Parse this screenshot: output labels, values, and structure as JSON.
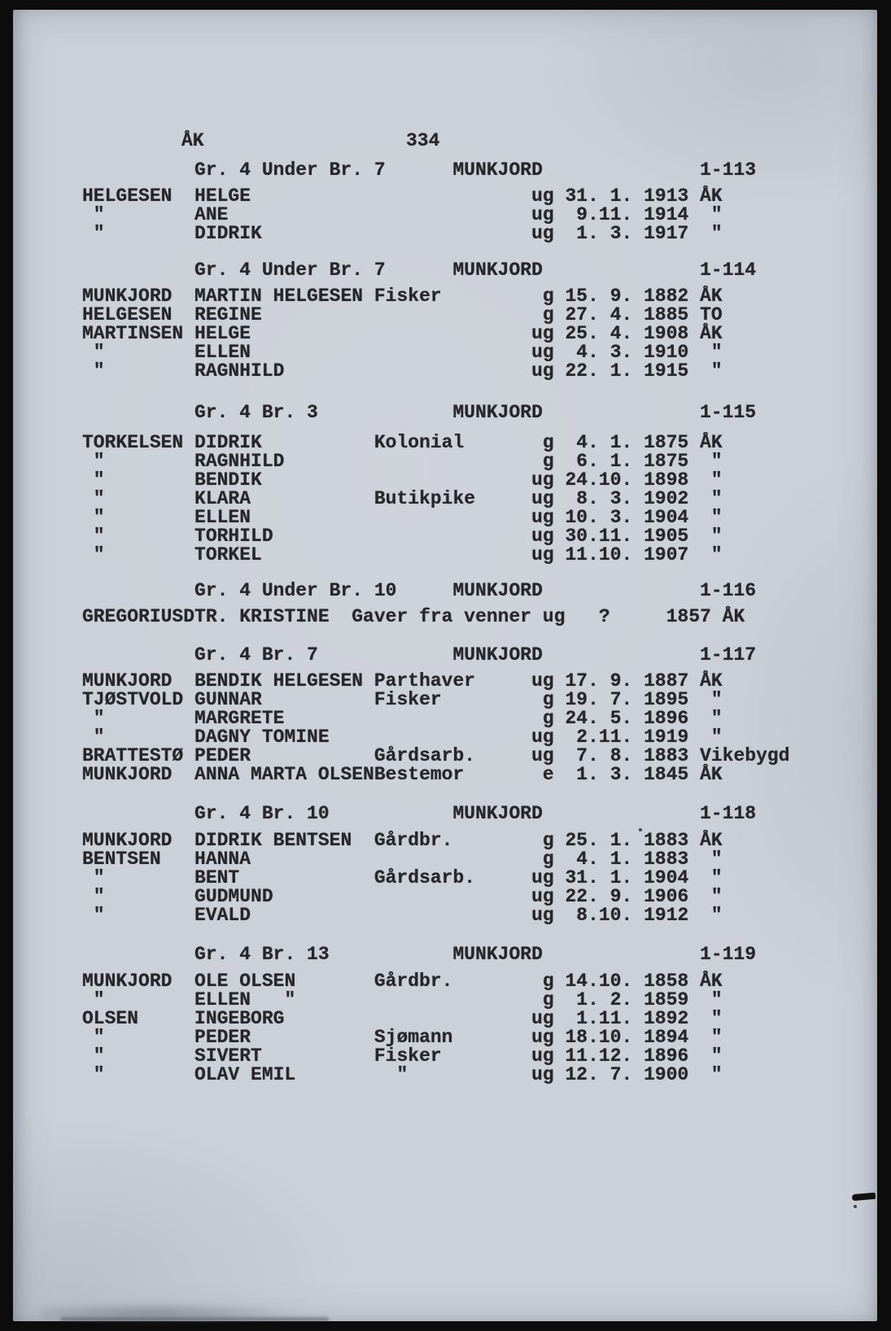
{
  "page": {
    "corner_label": "ÅK",
    "page_number": "334",
    "paper_color": "#ccd0d8",
    "ink_color": "#26262c",
    "frame_color": "#0c0c0c"
  },
  "sections": [
    {
      "group": "Gr. 4 Under Br. 7",
      "farm": "MUNKJORD",
      "id": "1-113",
      "rows": [
        {
          "surname": "HELGESEN",
          "given": "HELGE",
          "occupation": "",
          "status": "ug",
          "date": "31. 1.",
          "year": "1913",
          "place": "ÅK"
        },
        {
          "surname": "\"",
          "given": "ANE",
          "occupation": "",
          "status": "ug",
          "date": " 9.11.",
          "year": "1914",
          "place": "\""
        },
        {
          "surname": "\"",
          "given": "DIDRIK",
          "occupation": "",
          "status": "ug",
          "date": " 1. 3.",
          "year": "1917",
          "place": "\""
        }
      ]
    },
    {
      "group": "Gr. 4 Under Br. 7",
      "farm": "MUNKJORD",
      "id": "1-114",
      "rows": [
        {
          "surname": "MUNKJORD",
          "given": "MARTIN HELGESEN",
          "occupation": "Fisker",
          "status": "g",
          "date": "15. 9.",
          "year": "1882",
          "place": "ÅK"
        },
        {
          "surname": "HELGESEN",
          "given": "REGINE",
          "occupation": "",
          "status": "g",
          "date": "27. 4.",
          "year": "1885",
          "place": "TO"
        },
        {
          "surname": "MARTINSEN",
          "given": "HELGE",
          "occupation": "",
          "status": "ug",
          "date": "25. 4.",
          "year": "1908",
          "place": "ÅK"
        },
        {
          "surname": "\"",
          "given": "ELLEN",
          "occupation": "",
          "status": "ug",
          "date": " 4. 3.",
          "year": "1910",
          "place": "\""
        },
        {
          "surname": "\"",
          "given": "RAGNHILD",
          "occupation": "",
          "status": "ug",
          "date": "22. 1.",
          "year": "1915",
          "place": "\""
        }
      ]
    },
    {
      "group": "Gr. 4 Br. 3",
      "farm": "MUNKJORD",
      "id": "1-115",
      "rows": [
        {
          "surname": "TORKELSEN",
          "given": "DIDRIK",
          "occupation": "Kolonial",
          "status": "g",
          "date": " 4. 1.",
          "year": "1875",
          "place": "ÅK"
        },
        {
          "surname": "\"",
          "given": "RAGNHILD",
          "occupation": "",
          "status": "g",
          "date": " 6. 1.",
          "year": "1875",
          "place": "\""
        },
        {
          "surname": "\"",
          "given": "BENDIK",
          "occupation": "",
          "status": "ug",
          "date": "24.10.",
          "year": "1898",
          "place": "\""
        },
        {
          "surname": "\"",
          "given": "KLARA",
          "occupation": "Butikpike",
          "status": "ug",
          "date": " 8. 3.",
          "year": "1902",
          "place": "\""
        },
        {
          "surname": "\"",
          "given": "ELLEN",
          "occupation": "",
          "status": "ug",
          "date": "10. 3.",
          "year": "1904",
          "place": "\""
        },
        {
          "surname": "\"",
          "given": "TORHILD",
          "occupation": "",
          "status": "ug",
          "date": "30.11.",
          "year": "1905",
          "place": "\""
        },
        {
          "surname": "\"",
          "given": "TORKEL",
          "occupation": "",
          "status": "ug",
          "date": "11.10.",
          "year": "1907",
          "place": "\""
        }
      ]
    },
    {
      "group": "Gr. 4 Under Br. 10",
      "farm": "MUNKJORD",
      "id": "1-116",
      "rows": [
        {
          "special": true,
          "surname": "GREGORIUSDTR.",
          "given": "KRISTINE",
          "occupation": "Gaver fra venner",
          "status": "ug",
          "date": "?",
          "year": "1857",
          "place": "ÅK"
        }
      ]
    },
    {
      "group": "Gr. 4 Br. 7",
      "farm": "MUNKJORD",
      "id": "1-117",
      "rows": [
        {
          "surname": "MUNKJORD",
          "given": "BENDIK HELGESEN",
          "occupation": "Parthaver",
          "status": "ug",
          "date": "17. 9.",
          "year": "1887",
          "place": "ÅK"
        },
        {
          "surname": "TJØSTVOLD",
          "given": "GUNNAR",
          "occupation": "Fisker",
          "status": "g",
          "date": "19. 7.",
          "year": "1895",
          "place": "\""
        },
        {
          "surname": "\"",
          "given": "MARGRETE",
          "occupation": "",
          "status": "g",
          "date": "24. 5.",
          "year": "1896",
          "place": "\""
        },
        {
          "surname": "\"",
          "given": "DAGNY TOMINE",
          "occupation": "",
          "status": "ug",
          "date": " 2.11.",
          "year": "1919",
          "place": "\""
        },
        {
          "surname": "BRATTESTØ",
          "given": "PEDER",
          "occupation": "Gårdsarb.",
          "status": "ug",
          "date": " 7. 8.",
          "year": "1883",
          "place": "Vikebygd"
        },
        {
          "surname": "MUNKJORD",
          "given": "ANNA MARTA OLSEN",
          "occupation": "Bestemor",
          "status": "e",
          "date": " 1. 3.",
          "year": "1845",
          "place": "ÅK"
        }
      ]
    },
    {
      "group": "Gr. 4 Br. 10",
      "farm": "MUNKJORD",
      "id": "1-118",
      "rows": [
        {
          "surname": "MUNKJORD",
          "given": "DIDRIK BENTSEN",
          "occupation": "Gårdbr.",
          "status": "g",
          "date": "25. 1.",
          "year": "1883",
          "place": "ÅK"
        },
        {
          "surname": "BENTSEN",
          "given": "HANNA",
          "occupation": "",
          "status": "g",
          "date": " 4. 1.",
          "year": "1883",
          "place": "\""
        },
        {
          "surname": "\"",
          "given": "BENT",
          "occupation": "Gårdsarb.",
          "status": "ug",
          "date": "31. 1.",
          "year": "1904",
          "place": "\""
        },
        {
          "surname": "\"",
          "given": "GUDMUND",
          "occupation": "",
          "status": "ug",
          "date": "22. 9.",
          "year": "1906",
          "place": "\""
        },
        {
          "surname": "\"",
          "given": "EVALD",
          "occupation": "",
          "status": "ug",
          "date": " 8.10.",
          "year": "1912",
          "place": "\""
        }
      ]
    },
    {
      "group": "Gr. 4 Br. 13",
      "farm": "MUNKJORD",
      "id": "1-119",
      "rows": [
        {
          "surname": "MUNKJORD",
          "given": "OLE OLSEN",
          "occupation": "Gårdbr.",
          "status": "g",
          "date": "14.10.",
          "year": "1858",
          "place": "ÅK"
        },
        {
          "surname": "\"",
          "given": "ELLEN",
          "given_ditto": true,
          "occupation": "",
          "status": "g",
          "date": " 1. 2.",
          "year": "1859",
          "place": "\""
        },
        {
          "surname": "OLSEN",
          "given": "INGEBORG",
          "occupation": "",
          "status": "ug",
          "date": " 1.11.",
          "year": "1892",
          "place": "\""
        },
        {
          "surname": "\"",
          "given": "PEDER",
          "occupation": "Sjømann",
          "status": "ug",
          "date": "18.10.",
          "year": "1894",
          "place": "\""
        },
        {
          "surname": "\"",
          "given": "SIVERT",
          "occupation": "Fisker",
          "status": "ug",
          "date": "11.12.",
          "year": "1896",
          "place": "\""
        },
        {
          "surname": "\"",
          "given": "OLAV EMIL",
          "occupation": "\"",
          "status": "ug",
          "date": "12. 7.",
          "year": "1900",
          "place": "\""
        }
      ]
    }
  ]
}
